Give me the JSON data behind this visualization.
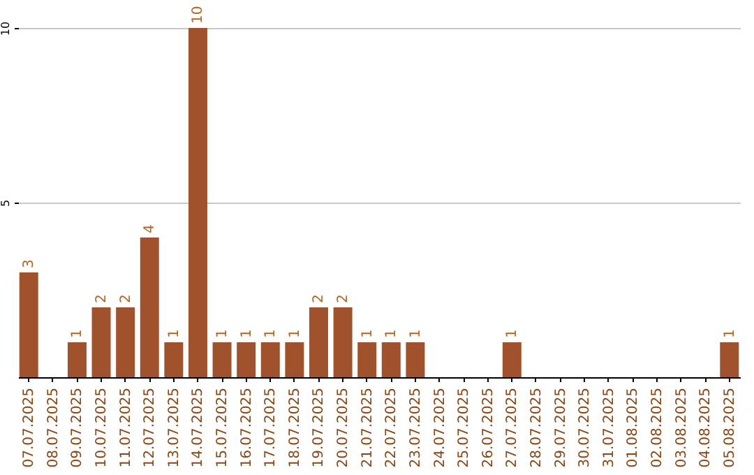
{
  "chart_data": {
    "type": "bar",
    "categories": [
      "07.07.2025",
      "08.07.2025",
      "09.07.2025",
      "10.07.2025",
      "11.07.2025",
      "12.07.2025",
      "13.07.2025",
      "14.07.2025",
      "15.07.2025",
      "16.07.2025",
      "17.07.2025",
      "18.07.2025",
      "19.07.2025",
      "20.07.2025",
      "21.07.2025",
      "22.07.2025",
      "23.07.2025",
      "24.07.2025",
      "25.07.2025",
      "26.07.2025",
      "27.07.2025",
      "28.07.2025",
      "29.07.2025",
      "30.07.2025",
      "31.07.2025",
      "01.08.2025",
      "02.08.2025",
      "03.08.2025",
      "04.08.2025",
      "05.08.2025"
    ],
    "values": [
      3,
      0,
      1,
      2,
      2,
      4,
      1,
      10,
      1,
      1,
      1,
      1,
      2,
      2,
      1,
      1,
      1,
      0,
      0,
      0,
      1,
      0,
      0,
      0,
      0,
      0,
      0,
      0,
      0,
      1
    ],
    "value_labels": [
      "3",
      null,
      "1",
      "2",
      "2",
      "4",
      "1",
      "10",
      "1",
      "1",
      "1",
      "1",
      "2",
      "2",
      "1",
      "1",
      "1",
      null,
      null,
      null,
      "1",
      null,
      null,
      null,
      null,
      null,
      null,
      null,
      null,
      "1"
    ],
    "color": "#a0522d",
    "ylim": [
      0,
      10
    ],
    "yticks": [
      5,
      10
    ],
    "grid": "y"
  }
}
